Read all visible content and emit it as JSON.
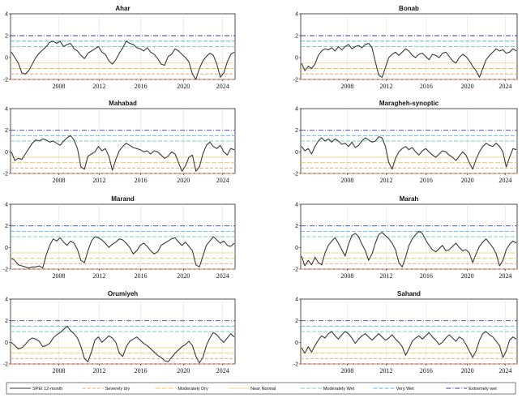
{
  "chart_data": [
    {
      "type": "line",
      "title": "Ahar",
      "x_ticks": [
        "2008",
        "2012",
        "2016",
        "2020",
        "2024"
      ],
      "ylim": [
        -2,
        4
      ],
      "y_ticks": [
        "-2",
        "0",
        "2",
        "4"
      ],
      "series": [
        {
          "name": "SPEI 12-month",
          "values": [
            0.5,
            0.0,
            -0.5,
            -1.4,
            -1.5,
            -1.2,
            -0.6,
            0.0,
            0.4,
            0.7,
            1.0,
            1.4,
            1.5,
            1.3,
            1.5,
            1.0,
            1.2,
            1.3,
            0.8,
            0.6,
            0.2,
            -0.1,
            0.4,
            0.6,
            0.8,
            1.0,
            0.5,
            0.3,
            -0.3,
            -0.6,
            -0.2,
            0.4,
            0.9,
            1.5,
            1.3,
            1.2,
            0.9,
            0.8,
            0.6,
            0.9,
            0.5,
            0.3,
            -0.1,
            -0.6,
            -0.7,
            0.1,
            0.3,
            0.8,
            0.6,
            0.3,
            0.0,
            -0.4,
            -1.5,
            -2.0,
            -1.0,
            -0.3,
            0.1,
            0.4,
            0.2,
            -0.6,
            -1.8,
            -1.4,
            -0.4,
            0.3,
            0.5
          ]
        }
      ]
    },
    {
      "type": "line",
      "title": "Bonab",
      "x_ticks": [
        "2008",
        "2012",
        "2016",
        "2020",
        "2024"
      ],
      "ylim": [
        -2,
        4
      ],
      "y_ticks": [
        "-2",
        "0",
        "2",
        "4"
      ],
      "series": [
        {
          "name": "SPEI 12-month",
          "values": [
            -0.5,
            -1.2,
            -0.8,
            -1.0,
            -0.6,
            0.2,
            0.6,
            0.8,
            0.7,
            0.9,
            0.6,
            1.0,
            0.7,
            1.0,
            1.2,
            0.8,
            1.0,
            1.1,
            0.9,
            1.2,
            1.3,
            0.9,
            -0.4,
            -1.6,
            -1.8,
            -0.9,
            0.0,
            0.3,
            0.5,
            0.2,
            0.5,
            0.8,
            0.6,
            0.2,
            0.0,
            0.3,
            0.4,
            0.1,
            -0.2,
            0.3,
            0.2,
            0.0,
            0.4,
            0.5,
            0.1,
            -0.3,
            -0.5,
            0.0,
            0.3,
            0.1,
            -0.3,
            -0.8,
            -1.2,
            -1.8,
            -1.0,
            -0.2,
            0.2,
            0.5,
            0.8,
            0.6,
            0.7,
            0.4,
            0.5,
            0.8,
            0.6
          ]
        }
      ]
    },
    {
      "type": "line",
      "title": "Mahabad",
      "x_ticks": [
        "2008",
        "2012",
        "2016",
        "2020",
        "2024"
      ],
      "ylim": [
        -2,
        4
      ],
      "y_ticks": [
        "-2",
        "0",
        "2",
        "4"
      ],
      "series": [
        {
          "name": "SPEI 12-month",
          "values": [
            0.0,
            -0.8,
            -0.6,
            -0.7,
            -0.2,
            0.3,
            0.8,
            1.1,
            1.0,
            1.2,
            1.1,
            0.9,
            1.0,
            0.8,
            0.6,
            1.0,
            1.3,
            1.5,
            1.1,
            0.3,
            -1.4,
            -1.6,
            -0.4,
            -0.2,
            0.0,
            0.5,
            0.1,
            0.3,
            -0.4,
            -1.7,
            -0.7,
            0.1,
            0.5,
            0.8,
            0.6,
            0.4,
            0.3,
            0.2,
            0.0,
            0.1,
            -0.2,
            0.1,
            0.0,
            -0.3,
            -0.6,
            -0.4,
            0.0,
            -0.2,
            -1.0,
            -1.8,
            -1.3,
            -0.5,
            -0.3,
            -1.8,
            -1.4,
            -0.2,
            0.6,
            0.9,
            0.5,
            0.3,
            0.6,
            0.0,
            -0.3,
            0.3,
            0.2
          ]
        }
      ]
    },
    {
      "type": "line",
      "title": "Maragheh-synoptic",
      "x_ticks": [
        "2008",
        "2012",
        "2016",
        "2020",
        "2024"
      ],
      "ylim": [
        -2,
        4
      ],
      "y_ticks": [
        "-2",
        "0",
        "2",
        "4"
      ],
      "series": [
        {
          "name": "SPEI 12-month",
          "values": [
            0.5,
            0.1,
            0.3,
            -0.2,
            0.5,
            1.0,
            1.3,
            1.0,
            1.2,
            0.9,
            1.2,
            1.0,
            0.7,
            0.8,
            0.5,
            0.9,
            0.4,
            0.6,
            1.0,
            1.3,
            1.1,
            0.9,
            1.0,
            1.4,
            1.3,
            0.5,
            -1.0,
            -1.6,
            -0.6,
            0.0,
            0.3,
            0.5,
            0.2,
            0.4,
            0.0,
            -0.3,
            0.1,
            0.3,
            0.0,
            -0.3,
            -0.5,
            -0.2,
            0.1,
            0.0,
            -0.3,
            -0.5,
            -0.8,
            -0.4,
            0.0,
            -0.3,
            -1.0,
            -1.6,
            -0.7,
            0.0,
            0.5,
            0.8,
            0.6,
            0.5,
            0.8,
            0.5,
            0.0,
            -1.4,
            -0.5,
            0.3,
            0.2
          ]
        }
      ]
    },
    {
      "type": "line",
      "title": "Marand",
      "x_ticks": [
        "2008",
        "2012",
        "2016",
        "2020",
        "2024"
      ],
      "ylim": [
        -2,
        4
      ],
      "y_ticks": [
        "-2",
        "0",
        "2",
        "4"
      ],
      "series": [
        {
          "name": "SPEI 12-month",
          "values": [
            -1.0,
            -1.2,
            -1.6,
            -1.7,
            -1.8,
            -1.9,
            -1.8,
            -1.8,
            -1.7,
            -1.9,
            -0.7,
            0.2,
            0.8,
            0.6,
            0.9,
            0.5,
            0.2,
            0.6,
            0.4,
            -0.2,
            -1.2,
            -1.4,
            -0.3,
            0.6,
            1.0,
            0.9,
            0.7,
            0.4,
            0.0,
            0.3,
            0.5,
            0.8,
            0.7,
            0.4,
            0.0,
            -0.6,
            -0.3,
            0.2,
            0.4,
            0.1,
            -0.3,
            -0.6,
            -0.4,
            0.2,
            0.4,
            0.6,
            0.8,
            0.9,
            0.5,
            0.2,
            0.5,
            0.1,
            -0.3,
            -1.6,
            -1.8,
            -0.8,
            0.2,
            0.6,
            1.0,
            0.7,
            0.4,
            0.6,
            0.2,
            0.1,
            0.4
          ]
        }
      ]
    },
    {
      "type": "line",
      "title": "Marah",
      "x_ticks": [
        "2008",
        "2012",
        "2016",
        "2020",
        "2024"
      ],
      "ylim": [
        -2,
        4
      ],
      "y_ticks": [
        "-2",
        "0",
        "2",
        "4"
      ],
      "series": [
        {
          "name": "SPEI 12-month",
          "values": [
            -0.8,
            -1.7,
            -1.2,
            -1.6,
            -0.9,
            -1.4,
            -1.6,
            -0.5,
            0.2,
            0.6,
            0.9,
            0.4,
            -0.2,
            -0.8,
            0.3,
            1.1,
            1.3,
            1.0,
            0.3,
            -0.3,
            -1.2,
            -0.6,
            0.4,
            1.2,
            1.4,
            1.1,
            0.8,
            0.4,
            -0.2,
            -1.4,
            -1.8,
            -0.9,
            0.2,
            0.8,
            1.2,
            1.5,
            1.3,
            0.7,
            0.2,
            -0.2,
            -0.4,
            -0.1,
            0.2,
            -0.3,
            -0.2,
            0.1,
            0.4,
            0.0,
            -0.3,
            -0.2,
            -0.5,
            -1.4,
            -0.6,
            0.1,
            0.5,
            0.8,
            0.4,
            0.0,
            -0.6,
            -1.7,
            -1.2,
            -0.2,
            0.3,
            0.6,
            0.4
          ]
        }
      ]
    },
    {
      "type": "line",
      "title": "Orumiyeh",
      "x_ticks": [
        "2008",
        "2012",
        "2016",
        "2020",
        "2024"
      ],
      "ylim": [
        -2,
        4
      ],
      "y_ticks": [
        "-2",
        "0",
        "2",
        "4"
      ],
      "series": [
        {
          "name": "SPEI 12-month",
          "values": [
            0.0,
            -0.3,
            -0.6,
            -0.5,
            -0.2,
            0.2,
            0.4,
            0.3,
            0.1,
            -0.4,
            -0.3,
            -0.1,
            0.4,
            0.7,
            0.9,
            1.2,
            1.5,
            1.1,
            0.8,
            0.4,
            -0.4,
            -1.5,
            -1.8,
            -0.9,
            0.2,
            0.5,
            0.0,
            0.3,
            0.6,
            0.4,
            0.0,
            -1.0,
            -1.3,
            -0.4,
            0.1,
            0.3,
            0.5,
            0.2,
            -0.1,
            -0.3,
            -0.6,
            -0.9,
            -1.2,
            -1.4,
            -1.7,
            -1.8,
            -1.4,
            -1.0,
            -0.7,
            -0.4,
            -0.2,
            0.1,
            -0.3,
            -1.3,
            -1.9,
            -1.4,
            -0.3,
            0.4,
            0.9,
            0.7,
            0.3,
            0.0,
            0.4,
            0.8,
            0.5
          ]
        }
      ]
    },
    {
      "type": "line",
      "title": "Sahand",
      "x_ticks": [
        "2008",
        "2012",
        "2016",
        "2020",
        "2024"
      ],
      "ylim": [
        -2,
        4
      ],
      "y_ticks": [
        "-2",
        "0",
        "2",
        "4"
      ],
      "series": [
        {
          "name": "SPEI 12-month",
          "values": [
            -0.5,
            -1.0,
            -0.4,
            -0.9,
            -0.3,
            0.2,
            0.6,
            0.4,
            0.8,
            1.0,
            0.6,
            0.3,
            0.7,
            1.0,
            0.8,
            0.4,
            -0.1,
            0.3,
            0.6,
            0.8,
            0.5,
            0.2,
            0.5,
            0.8,
            0.5,
            0.2,
            0.4,
            0.7,
            0.3,
            0.0,
            -0.4,
            -1.2,
            -0.6,
            0.1,
            0.4,
            0.6,
            0.3,
            0.6,
            0.9,
            0.5,
            0.2,
            -0.2,
            0.0,
            0.4,
            0.7,
            0.4,
            0.1,
            0.5,
            0.3,
            -0.2,
            -0.8,
            -1.4,
            -0.8,
            0.2,
            0.8,
            1.0,
            0.7,
            0.5,
            0.1,
            -0.3,
            -1.4,
            -0.8,
            0.2,
            0.5,
            0.3
          ]
        }
      ]
    }
  ],
  "legend": [
    {
      "label": "SPEI 12-month",
      "color": "#333333",
      "dash": "none"
    },
    {
      "label": "Severely dry",
      "color": "#e8a070",
      "dash": "4,2"
    },
    {
      "label": "Moderately Dry",
      "color": "#e8c45a",
      "dash": "6,2"
    },
    {
      "label": "Near Normal",
      "color": "#f0d890",
      "dash": "none"
    },
    {
      "label": "Moderately Wet",
      "color": "#7dd0b8",
      "dash": "5,2"
    },
    {
      "label": "Very Wet",
      "color": "#58b4d8",
      "dash": "5,2"
    },
    {
      "label": "Extremely wet",
      "color": "#3a3aa8",
      "dash": "6,2,1,2"
    }
  ],
  "thresholds": [
    {
      "y": -2.0,
      "color": "#e07a50",
      "dash": "4,2"
    },
    {
      "y": -1.5,
      "color": "#e8a070",
      "dash": "4,2"
    },
    {
      "y": -1.0,
      "color": "#e8c45a",
      "dash": "6,2"
    },
    {
      "y": -0.5,
      "color": "#f0d890",
      "dash": "none"
    },
    {
      "y": 1.0,
      "color": "#7dd0b8",
      "dash": "5,2"
    },
    {
      "y": 1.5,
      "color": "#58b4d8",
      "dash": "5,2"
    },
    {
      "y": 2.0,
      "color": "#3a3aa8",
      "dash": "6,2,1,2"
    }
  ]
}
